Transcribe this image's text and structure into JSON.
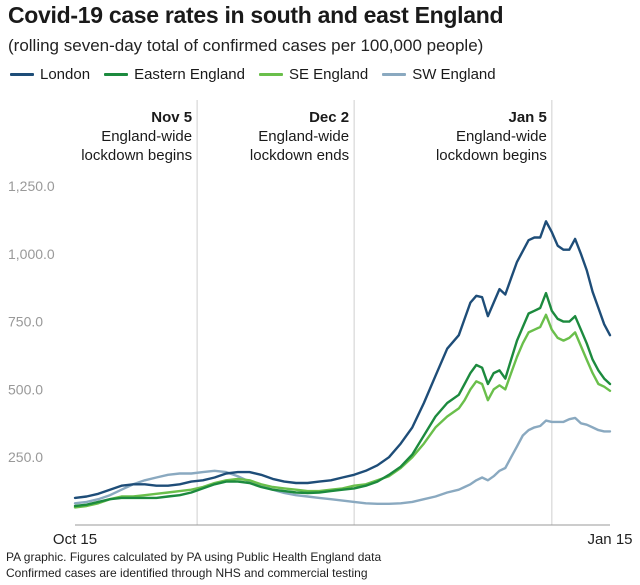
{
  "title": "Covid-19 case rates in south and east England",
  "subtitle": "(rolling seven-day total of confirmed cases per 100,000 people)",
  "footer": {
    "line1": "PA graphic. Figures calculated by PA using Public Health England data",
    "line2": "Confirmed cases are identified through NHS and commercial testing"
  },
  "chart_data": {
    "type": "line",
    "x_start_label": "Oct 15",
    "x_end_label": "Jan 15",
    "x_range": [
      "2020-10-15",
      "2021-01-15"
    ],
    "ylim": [
      0,
      1250
    ],
    "yticks": [
      250,
      500,
      750,
      1000,
      1250
    ],
    "ytick_labels": [
      "250.0",
      "500.0",
      "750.0",
      "1,000.0",
      "1,250.0"
    ],
    "grid": false,
    "legend_position": "top-left",
    "annotations": [
      {
        "date": "2020-11-05",
        "label": "Nov 5",
        "lines": [
          "England-wide",
          "lockdown begins"
        ]
      },
      {
        "date": "2020-12-02",
        "label": "Dec 2",
        "lines": [
          "England-wide",
          "lockdown ends"
        ]
      },
      {
        "date": "2021-01-05",
        "label": "Jan 5",
        "lines": [
          "England-wide",
          "lockdown begins"
        ]
      }
    ],
    "x": [
      "2020-10-15",
      "2020-10-17",
      "2020-10-19",
      "2020-10-21",
      "2020-10-23",
      "2020-10-25",
      "2020-10-27",
      "2020-10-29",
      "2020-10-31",
      "2020-11-02",
      "2020-11-04",
      "2020-11-06",
      "2020-11-08",
      "2020-11-10",
      "2020-11-12",
      "2020-11-14",
      "2020-11-16",
      "2020-11-18",
      "2020-11-20",
      "2020-11-22",
      "2020-11-24",
      "2020-11-26",
      "2020-11-28",
      "2020-11-30",
      "2020-12-02",
      "2020-12-04",
      "2020-12-06",
      "2020-12-08",
      "2020-12-10",
      "2020-12-12",
      "2020-12-14",
      "2020-12-16",
      "2020-12-18",
      "2020-12-20",
      "2020-12-21",
      "2020-12-22",
      "2020-12-23",
      "2020-12-24",
      "2020-12-25",
      "2020-12-26",
      "2020-12-27",
      "2020-12-28",
      "2020-12-29",
      "2020-12-30",
      "2020-12-31",
      "2021-01-01",
      "2021-01-02",
      "2021-01-03",
      "2021-01-04",
      "2021-01-05",
      "2021-01-06",
      "2021-01-07",
      "2021-01-08",
      "2021-01-09",
      "2021-01-10",
      "2021-01-11",
      "2021-01-12",
      "2021-01-13",
      "2021-01-14",
      "2021-01-15"
    ],
    "series": [
      {
        "name": "London",
        "color": "#1e4d78",
        "values": [
          100,
          105,
          115,
          130,
          145,
          150,
          150,
          145,
          145,
          150,
          160,
          165,
          175,
          190,
          195,
          195,
          185,
          170,
          160,
          155,
          155,
          160,
          165,
          175,
          185,
          200,
          220,
          250,
          300,
          360,
          450,
          550,
          650,
          700,
          760,
          820,
          845,
          840,
          770,
          820,
          870,
          850,
          910,
          970,
          1010,
          1050,
          1060,
          1060,
          1120,
          1080,
          1030,
          1015,
          1015,
          1055,
          1000,
          940,
          860,
          800,
          740,
          700
        ]
      },
      {
        "name": "Eastern England",
        "color": "#1c8a3e",
        "values": [
          70,
          75,
          85,
          95,
          100,
          100,
          100,
          100,
          105,
          110,
          120,
          135,
          150,
          160,
          160,
          155,
          140,
          130,
          125,
          120,
          118,
          120,
          125,
          130,
          135,
          145,
          160,
          185,
          215,
          260,
          330,
          400,
          450,
          480,
          520,
          560,
          590,
          580,
          520,
          560,
          570,
          540,
          610,
          680,
          730,
          780,
          790,
          800,
          855,
          790,
          760,
          750,
          750,
          770,
          720,
          670,
          610,
          570,
          540,
          520
        ]
      },
      {
        "name": "SE England",
        "color": "#6abf4b",
        "values": [
          65,
          70,
          80,
          95,
          105,
          105,
          110,
          115,
          120,
          125,
          130,
          140,
          155,
          165,
          170,
          165,
          150,
          140,
          135,
          130,
          125,
          125,
          130,
          135,
          145,
          150,
          165,
          180,
          210,
          250,
          300,
          360,
          400,
          430,
          460,
          500,
          530,
          520,
          460,
          500,
          515,
          500,
          560,
          620,
          670,
          710,
          720,
          730,
          775,
          720,
          690,
          680,
          690,
          710,
          660,
          610,
          560,
          520,
          510,
          495
        ]
      },
      {
        "name": "SW England",
        "color": "#8aa9c0",
        "values": [
          80,
          85,
          95,
          110,
          130,
          150,
          165,
          175,
          185,
          190,
          190,
          195,
          200,
          195,
          180,
          160,
          145,
          130,
          118,
          110,
          105,
          100,
          95,
          90,
          85,
          80,
          78,
          78,
          80,
          85,
          95,
          105,
          120,
          130,
          140,
          150,
          165,
          175,
          165,
          180,
          200,
          210,
          250,
          290,
          330,
          350,
          360,
          365,
          385,
          380,
          380,
          380,
          390,
          395,
          375,
          370,
          360,
          350,
          345,
          345
        ]
      }
    ]
  }
}
